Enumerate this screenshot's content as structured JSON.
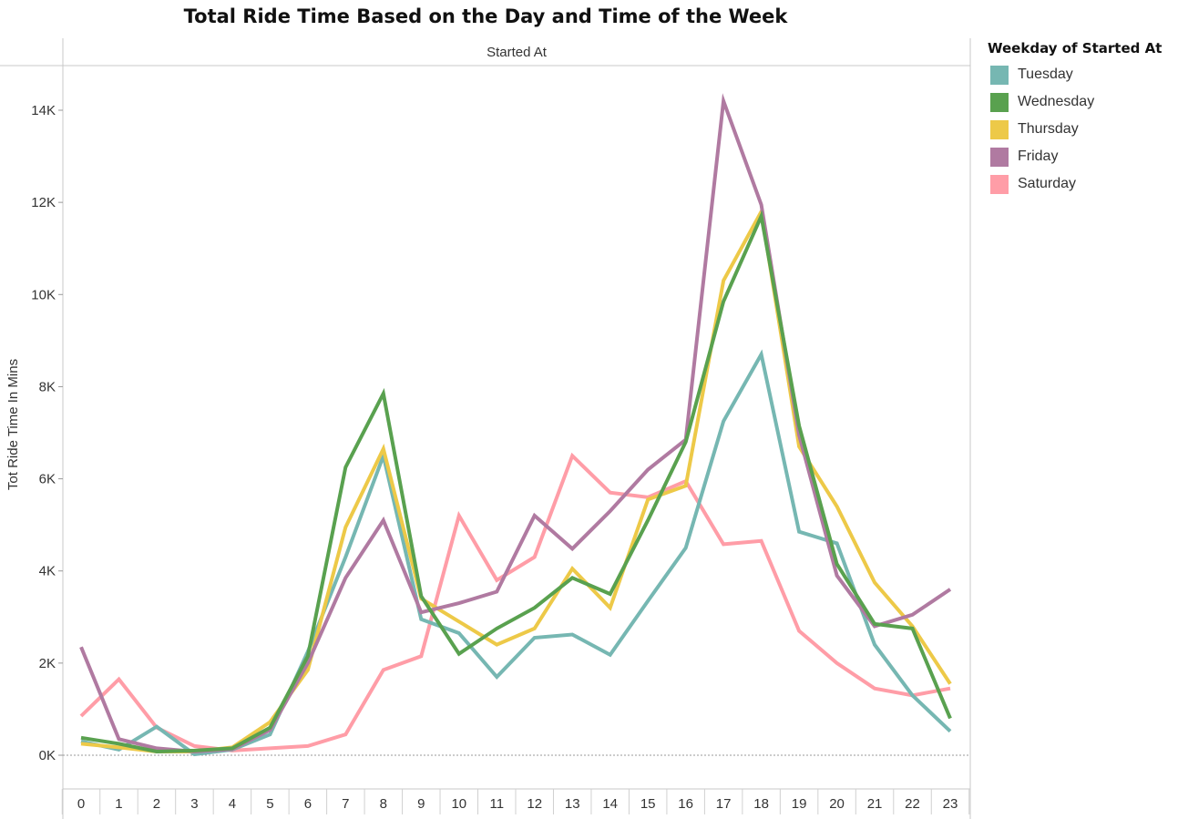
{
  "chart_data": {
    "type": "line",
    "title": "Total Ride Time Based on the Day and Time of the Week",
    "header": "Started At",
    "ylabel": "Tot Ride Time In Mins",
    "xlabel": "",
    "ylim": [
      0,
      15000
    ],
    "y_ticks": [
      0,
      2000,
      4000,
      6000,
      8000,
      10000,
      12000,
      14000
    ],
    "y_tick_labels": [
      "0K",
      "2K",
      "4K",
      "6K",
      "8K",
      "10K",
      "12K",
      "14K"
    ],
    "categories": [
      "0",
      "1",
      "2",
      "3",
      "4",
      "5",
      "6",
      "7",
      "8",
      "9",
      "10",
      "11",
      "12",
      "13",
      "14",
      "15",
      "16",
      "17",
      "18",
      "19",
      "20",
      "21",
      "22",
      "23"
    ],
    "legend_title": "Weekday of Started At",
    "legend_position": "right",
    "series": [
      {
        "name": "Saturday",
        "color": "#FF9DA7",
        "values": [
          850,
          1650,
          600,
          200,
          100,
          150,
          200,
          450,
          1850,
          2150,
          5200,
          3800,
          4300,
          6500,
          5700,
          5600,
          5950,
          4580,
          4650,
          2700,
          2000,
          1450,
          1300,
          1450
        ]
      },
      {
        "name": "Tuesday",
        "color": "#76B7B2",
        "values": [
          300,
          120,
          620,
          20,
          120,
          450,
          2250,
          4300,
          6500,
          2950,
          2650,
          1700,
          2550,
          2620,
          2180,
          3350,
          4500,
          7250,
          8700,
          4850,
          4600,
          2400,
          1300,
          520
        ]
      },
      {
        "name": "Thursday",
        "color": "#EDC948",
        "values": [
          250,
          170,
          80,
          80,
          170,
          720,
          1850,
          4950,
          6650,
          3400,
          2900,
          2400,
          2750,
          4050,
          3200,
          5550,
          5850,
          10300,
          11800,
          6700,
          5400,
          3750,
          2800,
          1550
        ]
      },
      {
        "name": "Friday",
        "color": "#B07AA1",
        "values": [
          2350,
          350,
          150,
          80,
          130,
          550,
          2000,
          3850,
          5100,
          3100,
          3300,
          3550,
          5200,
          4480,
          5300,
          6200,
          6850,
          14200,
          11950,
          6950,
          3900,
          2800,
          3050,
          3600
        ]
      },
      {
        "name": "Wednesday",
        "color": "#59A14F",
        "values": [
          380,
          250,
          80,
          100,
          150,
          600,
          2150,
          6250,
          7850,
          3450,
          2200,
          2750,
          3200,
          3850,
          3500,
          5100,
          6800,
          9850,
          11700,
          7150,
          4150,
          2850,
          2750,
          800
        ]
      }
    ]
  },
  "legend_items": [
    "Tuesday",
    "Wednesday",
    "Thursday",
    "Friday",
    "Saturday"
  ]
}
